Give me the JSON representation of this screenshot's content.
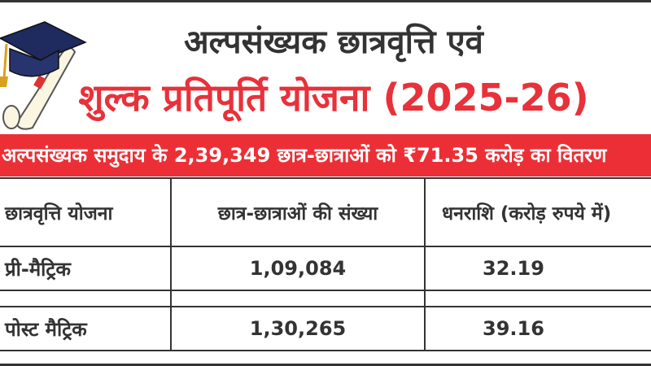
{
  "header": {
    "title_line1": "अल्पसंख्यक छात्रवृत्ति एवं",
    "title_line2": "शुल्क प्रतिपूर्ति योजना (2025-26)"
  },
  "banner": {
    "text": "अल्पसंख्यक समुदाय के 2,39,349 छात्र-छात्राओं को ₹71.35 करोड़ का वितरण"
  },
  "table": {
    "headers": [
      "छात्रवृत्ति योजना",
      "छात्र-छात्राओं की संख्या",
      "धनराशि (करोड़ रुपये में)"
    ],
    "rows": [
      {
        "scheme": "प्री-मैट्रिक",
        "students": "1,09,084",
        "amount": "32.19"
      },
      {
        "scheme": "पोस्ट मैट्रिक",
        "students": "1,30,265",
        "amount": "39.16"
      }
    ]
  },
  "colors": {
    "accent": "#ec2f36",
    "text": "#333333",
    "cap": "#1f2a5e"
  }
}
